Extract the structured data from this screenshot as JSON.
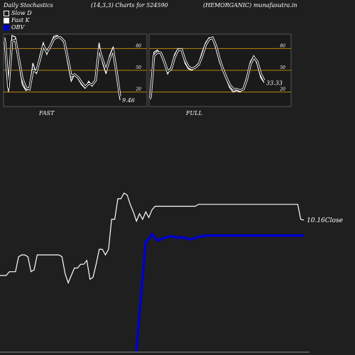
{
  "header": {
    "left": "Daily Stochastics",
    "middle": "(14,3,3) Charts for 524590",
    "right": "(HEMORGANIC) munafasutra.in"
  },
  "legend": [
    {
      "label": "Slow  D",
      "color": "#1f1f1f"
    },
    {
      "label": "Fast K",
      "color": "#ffffff"
    },
    {
      "label": "OBV",
      "color": "#0000cc"
    }
  ],
  "colors": {
    "background": "#1f1f1f",
    "panel": "#1a1a1a",
    "grid": "#b8860b",
    "line": "#ffffff",
    "obv": "#0000cc"
  },
  "chart_data": [
    {
      "type": "line",
      "title": "FAST",
      "ylim": [
        0,
        100
      ],
      "yticks": [
        20,
        50,
        80
      ],
      "last_value_label": "9.46",
      "series": [
        {
          "name": "Fast K",
          "values": [
            95,
            20,
            98,
            96,
            60,
            30,
            22,
            25,
            60,
            45,
            70,
            88,
            72,
            85,
            97,
            98,
            94,
            88,
            60,
            35,
            45,
            38,
            30,
            25,
            35,
            28,
            38,
            88,
            60,
            45,
            70,
            82,
            42,
            9
          ]
        },
        {
          "name": "Slow D",
          "values": [
            90,
            25,
            90,
            92,
            65,
            38,
            26,
            24,
            50,
            48,
            65,
            84,
            75,
            83,
            93,
            96,
            95,
            90,
            66,
            42,
            44,
            40,
            33,
            27,
            32,
            30,
            36,
            80,
            64,
            50,
            66,
            78,
            48,
            14
          ]
        }
      ]
    },
    {
      "type": "line",
      "title": "FULL",
      "ylim": [
        0,
        100
      ],
      "yticks": [
        20,
        50,
        80
      ],
      "last_value_label": "33.33",
      "series": [
        {
          "name": "Fast K",
          "values": [
            10,
            75,
            78,
            72,
            60,
            45,
            55,
            72,
            80,
            78,
            60,
            52,
            50,
            55,
            60,
            75,
            88,
            95,
            94,
            80,
            62,
            50,
            38,
            26,
            20,
            22,
            20,
            26,
            42,
            62,
            70,
            58,
            40,
            33
          ]
        },
        {
          "name": "Slow D",
          "values": [
            12,
            70,
            75,
            74,
            62,
            48,
            52,
            68,
            78,
            79,
            64,
            55,
            52,
            54,
            58,
            70,
            85,
            93,
            95,
            84,
            66,
            52,
            40,
            30,
            24,
            24,
            22,
            24,
            38,
            58,
            68,
            62,
            45,
            36
          ]
        }
      ]
    },
    {
      "type": "line",
      "title": "",
      "last_value_label": "10.16Close",
      "x": [
        0,
        1,
        2,
        3,
        4,
        5,
        6,
        7,
        8,
        9,
        10,
        11,
        12,
        13,
        14,
        15,
        16,
        17,
        18,
        19,
        20,
        21,
        22,
        23,
        24,
        25,
        26,
        27,
        28,
        29,
        30,
        31,
        32,
        33,
        34,
        35,
        36,
        37,
        38,
        39,
        40,
        41,
        42,
        43,
        44,
        45,
        46,
        47,
        48,
        49,
        50,
        51,
        52,
        53,
        54,
        55,
        56,
        57,
        58,
        59,
        60,
        61,
        62,
        63,
        64,
        65,
        66,
        67,
        68,
        69,
        70,
        71,
        72,
        73,
        74,
        75,
        76,
        77,
        78,
        79,
        80,
        81,
        82,
        83,
        84,
        85,
        86,
        87,
        88,
        89,
        90,
        91,
        92,
        93,
        94,
        95,
        96,
        97,
        98
      ],
      "series": [
        {
          "name": "Close",
          "values": [
            7.2,
            7.2,
            7.2,
            7.4,
            7.4,
            7.4,
            8.2,
            8.3,
            8.3,
            8.2,
            7.4,
            7.5,
            8.3,
            8.3,
            8.3,
            8.3,
            8.3,
            8.3,
            8.3,
            8.3,
            8.2,
            7.3,
            6.8,
            7.2,
            7.6,
            7.6,
            7.8,
            7.8,
            8.0,
            7.0,
            7.1,
            7.8,
            8.6,
            8.6,
            8.3,
            8.6,
            10.2,
            10.2,
            11.3,
            11.3,
            11.6,
            11.5,
            11.0,
            10.6,
            10.1,
            10.5,
            10.2,
            10.6,
            10.3,
            10.7,
            10.9,
            10.9,
            10.9,
            10.9,
            10.9,
            10.9,
            10.9,
            10.9,
            10.9,
            10.9,
            10.9,
            10.9,
            10.9,
            10.9,
            11.0,
            11.0,
            11.0,
            11.0,
            11.0,
            11.0,
            11.0,
            11.0,
            11.0,
            11.0,
            11.0,
            11.0,
            11.0,
            11.0,
            11.0,
            11.0,
            11.0,
            11.0,
            11.0,
            11.0,
            11.0,
            11.0,
            11.0,
            11.0,
            11.0,
            11.0,
            11.0,
            11.0,
            11.0,
            11.0,
            11.0,
            11.0,
            11.0,
            10.2,
            10.16
          ]
        },
        {
          "name": "OBV",
          "values": [
            null,
            null,
            null,
            null,
            null,
            null,
            null,
            null,
            null,
            null,
            null,
            null,
            null,
            null,
            null,
            null,
            null,
            null,
            null,
            null,
            null,
            null,
            null,
            null,
            null,
            null,
            null,
            null,
            null,
            null,
            null,
            null,
            null,
            null,
            null,
            null,
            null,
            null,
            null,
            null,
            null,
            null,
            null,
            null,
            0,
            3,
            6,
            9,
            9.2,
            9.6,
            9.3,
            9.1,
            9.2,
            9.3,
            9.4,
            9.4,
            9.4,
            9.3,
            9.4,
            9.3,
            9.3,
            9.2,
            9.2,
            9.3,
            9.4,
            9.4,
            9.5,
            9.5,
            9.5,
            9.5,
            9.5,
            9.5,
            9.5,
            9.5,
            9.5,
            9.5,
            9.5,
            9.5,
            9.5,
            9.5,
            9.5,
            9.5,
            9.5,
            9.5,
            9.5,
            9.5,
            9.5,
            9.5,
            9.5,
            9.5,
            9.5,
            9.5,
            9.5,
            9.5,
            9.5,
            9.5,
            9.5,
            9.5,
            9.5
          ]
        }
      ]
    }
  ]
}
